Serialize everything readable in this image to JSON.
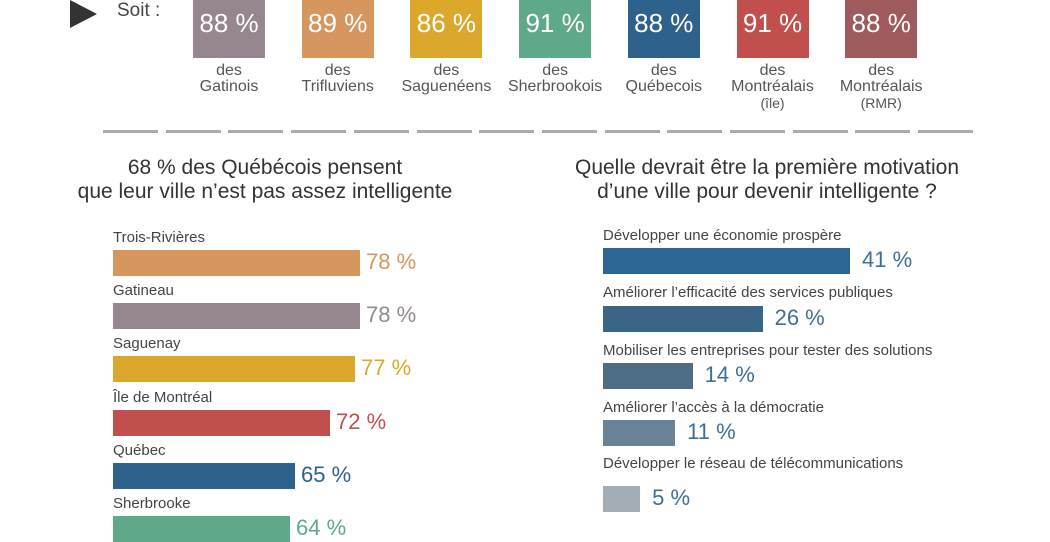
{
  "intro": "Soit :",
  "boxes": [
    {
      "value": "88 %",
      "line1": "des",
      "line2": "Gatinois",
      "line3": "",
      "color": "#968690"
    },
    {
      "value": "89 %",
      "line1": "des",
      "line2": "Trifluviens",
      "line3": "",
      "color": "#d7965e"
    },
    {
      "value": "86 %",
      "line1": "des",
      "line2": "Saguenéens",
      "line3": "",
      "color": "#dca82c"
    },
    {
      "value": "91 %",
      "line1": "des",
      "line2": "Sherbrookois",
      "line3": "",
      "color": "#5ea98a"
    },
    {
      "value": "88 %",
      "line1": "des",
      "line2": "Québecois",
      "line3": "",
      "color": "#2e628c"
    },
    {
      "value": "91 %",
      "line1": "des",
      "line2": "Montréalais",
      "line3": "(île)",
      "color": "#c14f4e"
    },
    {
      "value": "88 %",
      "line1": "des",
      "line2": "Montréalais",
      "line3": "(RMR)",
      "color": "#9e5a5c"
    }
  ],
  "chart_data": [
    {
      "type": "bar",
      "title": "68 % des Québécois pensent que leur ville n'est pas assez intelligente",
      "title1": "68 % des Québécois pensent",
      "title2": "que leur ville n’est pas assez intelligente",
      "categories": [
        "Trois-Rivières",
        "Gatineau",
        "Saguenay",
        "Île de Montréal",
        "Québec",
        "Sherbrooke"
      ],
      "values": [
        78,
        78,
        77,
        72,
        65,
        64
      ],
      "labels": [
        "78 %",
        "78 %",
        "77 %",
        "72 %",
        "65 %",
        "64 %"
      ],
      "colors": [
        "#d7965e",
        "#968690",
        "#dca82c",
        "#c14f4e",
        "#2e628c",
        "#5ea98a"
      ]
    },
    {
      "type": "bar",
      "title": "Quelle devrait être la première motivation d'une ville pour devenir intelligente ?",
      "title1": "Quelle devrait être la première motivation",
      "title2": "d’une ville pour devenir intelligente ?",
      "categories": [
        "Développer une économie prospère",
        "Améliorer l’efficacité des services publiques",
        "Mobiliser les entreprises pour tester des solutions",
        "Améliorer l’accès à la démocratie",
        "Développer le réseau de télécommunications"
      ],
      "values": [
        41,
        26,
        14,
        11,
        5
      ],
      "labels": [
        "41 %",
        "26 %",
        "14 %",
        "11 %",
        "5 %"
      ],
      "colors": [
        "#2b6594",
        "#3a6587",
        "#4e6e88",
        "#6a8295",
        "#a3adb5"
      ],
      "value_color": "#3e6f99"
    }
  ]
}
